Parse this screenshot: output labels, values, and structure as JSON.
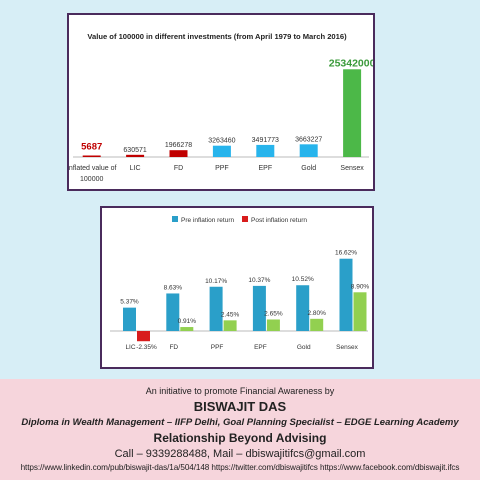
{
  "chart_data": [
    {
      "type": "bar",
      "title": "Value of 100000 in different investments (from April 1979 to March 2016)",
      "categories": [
        "Inflated value of 100000",
        "LIC",
        "FD",
        "PPF",
        "EPF",
        "Gold",
        "Sensex"
      ],
      "values": [
        5687,
        630571,
        1966278,
        3263460,
        3491773,
        3663227,
        25342000
      ],
      "value_labels": [
        "5687",
        "630571",
        "1966278",
        "3263460",
        "3491773",
        "3663227",
        "25342000"
      ],
      "colors": [
        "#c00000",
        "#c00000",
        "#c00000",
        "#27b4ec",
        "#27b4ec",
        "#27b4ec",
        "#4cb848"
      ],
      "ylim": [
        0,
        26000000
      ],
      "grid": false,
      "legend": "none"
    },
    {
      "type": "bar",
      "categories": [
        "LIC",
        "FD",
        "PPF",
        "EPF",
        "Gold",
        "Sensex"
      ],
      "series": [
        {
          "name": "Pre inflation return",
          "color": "#2a9fc9",
          "values": [
            5.37,
            8.63,
            10.17,
            10.37,
            10.52,
            16.62
          ],
          "labels": [
            "5.37%",
            "8.63%",
            "10.17%",
            "10.37%",
            "10.52%",
            "16.62%"
          ]
        },
        {
          "name": "Post inflation return",
          "color": "#d81c1c",
          "values": [
            -2.35,
            0.91,
            2.45,
            2.65,
            2.8,
            8.9
          ],
          "labels": [
            "-2.35%",
            "0.91%",
            "2.45%",
            "2.65%",
            "2.80%",
            "8.90%"
          ]
        }
      ],
      "post_positive_color": "#92d050",
      "ylim": [
        -4,
        18
      ],
      "grid": false,
      "legend": "top"
    }
  ],
  "footer": {
    "intro": "An initiative to promote Financial Awareness by",
    "name": "BISWAJIT DAS",
    "diploma": "Diploma in Wealth Management – IIFP Delhi, Goal Planning Specialist – EDGE Learning Academy",
    "tagline": "Relationship Beyond Advising",
    "contact": "Call  – 9339288488, Mail – dbiswajitifcs@gmail.com",
    "links": "https://www.linkedin.com/pub/biswajit-das/1a/504/148   https://twitter.com/dbiswajitifcs   https://www.facebook.com/dbiswajit.ifcs"
  }
}
